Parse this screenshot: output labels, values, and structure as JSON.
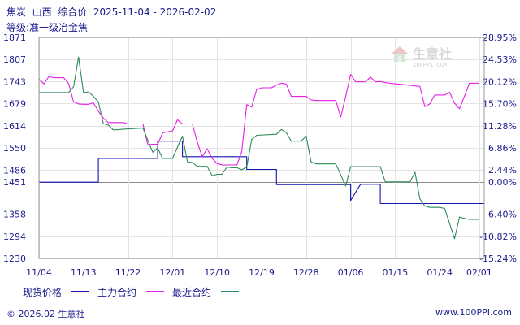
{
  "header": {
    "title": "焦炭  山西  综合价  2025-11-04 - 2026-02-02",
    "subtitle": "等级:准一级冶金焦"
  },
  "watermark": {
    "name": "生意社",
    "url": "100PPI.COM"
  },
  "footer": {
    "copyright": "© 2026.02 生意社",
    "site": "www.100PPI.com"
  },
  "legend": [
    "现货价格",
    "主力合约",
    "最近合约"
  ],
  "colors": {
    "spot": "#1414b4",
    "main": "#e61ee6",
    "near": "#2d8a5a",
    "axis": "#1a1a8c",
    "grid": "#e3e3e3",
    "zero": "#8a8a8a"
  },
  "chart_data": {
    "type": "line",
    "title": "焦炭  山西  综合价  2025-11-04 - 2026-02-02",
    "subtitle": "等级:准一级冶金焦",
    "ylim": [
      1230,
      1871
    ],
    "y2lim": [
      -15.24,
      28.95
    ],
    "yticks": [
      "1871",
      "1807",
      "1743",
      "1679",
      "1614",
      "1550",
      "1486",
      "1451",
      "1358",
      "1294",
      "1230"
    ],
    "ytick_values": [
      1871,
      1807,
      1743,
      1679,
      1614,
      1550,
      1486,
      1451,
      1358,
      1294,
      1230
    ],
    "y2ticks": [
      "28.95%",
      "24.53%",
      "20.12%",
      "15.70%",
      "11.28%",
      "6.86%",
      "2.44%",
      "0.00%",
      "-6.40%",
      "-10.82%",
      "-15.24%"
    ],
    "y2tick_values": [
      28.95,
      24.53,
      20.12,
      15.7,
      11.28,
      6.86,
      2.44,
      0.0,
      -6.4,
      -10.82,
      -15.24
    ],
    "xlim": [
      "2025-11-04",
      "2026-02-02"
    ],
    "xticks": [
      "11/04",
      "11/13",
      "11/22",
      "12/01",
      "12/10",
      "12/19",
      "12/28",
      "01/06",
      "01/15",
      "01/24",
      "02/01"
    ],
    "xtick_dates": [
      "2025-11-04",
      "2025-11-13",
      "2025-11-22",
      "2025-12-01",
      "2025-12-10",
      "2025-12-19",
      "2025-12-28",
      "2026-01-06",
      "2026-01-15",
      "2026-01-24",
      "2026-02-01"
    ],
    "grid": true,
    "legend_position": "bottom",
    "series": [
      {
        "name": "现货价格",
        "points": [
          [
            "2025-11-04",
            1451
          ],
          [
            "2025-11-16",
            1451
          ],
          [
            "2025-11-16",
            1520
          ],
          [
            "2025-11-28",
            1520
          ],
          [
            "2025-11-28",
            1570
          ],
          [
            "2025-12-03",
            1570
          ],
          [
            "2025-12-03",
            1525
          ],
          [
            "2025-12-16",
            1525
          ],
          [
            "2025-12-16",
            1488
          ],
          [
            "2025-12-22",
            1488
          ],
          [
            "2025-12-22",
            1444
          ],
          [
            "2026-01-06",
            1444
          ],
          [
            "2026-01-06",
            1398
          ],
          [
            "2026-01-08",
            1445
          ],
          [
            "2026-01-12",
            1445
          ],
          [
            "2026-01-12",
            1389
          ],
          [
            "2026-02-02",
            1389
          ]
        ]
      },
      {
        "name": "主力合约",
        "points": [
          [
            "2025-11-04",
            1750
          ],
          [
            "2025-11-05",
            1736
          ],
          [
            "2025-11-06",
            1758
          ],
          [
            "2025-11-07",
            1754
          ],
          [
            "2025-11-09",
            1754
          ],
          [
            "2025-11-10",
            1737
          ],
          [
            "2025-11-11",
            1684
          ],
          [
            "2025-11-12",
            1678
          ],
          [
            "2025-11-13",
            1677
          ],
          [
            "2025-11-14",
            1677
          ],
          [
            "2025-11-15",
            1681
          ],
          [
            "2025-11-16",
            1657
          ],
          [
            "2025-11-17",
            1637
          ],
          [
            "2025-11-18",
            1624
          ],
          [
            "2025-11-21",
            1624
          ],
          [
            "2025-11-22",
            1620
          ],
          [
            "2025-11-25",
            1620
          ],
          [
            "2025-11-26",
            1560
          ],
          [
            "2025-11-27",
            1561
          ],
          [
            "2025-11-28",
            1561
          ],
          [
            "2025-11-29",
            1594
          ],
          [
            "2025-12-01",
            1600
          ],
          [
            "2025-12-02",
            1632
          ],
          [
            "2025-12-03",
            1620
          ],
          [
            "2025-12-05",
            1620
          ],
          [
            "2025-12-06",
            1568
          ],
          [
            "2025-12-07",
            1525
          ],
          [
            "2025-12-08",
            1548
          ],
          [
            "2025-12-09",
            1520
          ],
          [
            "2025-12-10",
            1505
          ],
          [
            "2025-12-11",
            1501
          ],
          [
            "2025-12-14",
            1501
          ],
          [
            "2025-12-15",
            1540
          ],
          [
            "2025-12-16",
            1676
          ],
          [
            "2025-12-17",
            1669
          ],
          [
            "2025-12-18",
            1720
          ],
          [
            "2025-12-19",
            1725
          ],
          [
            "2025-12-21",
            1725
          ],
          [
            "2025-12-22",
            1733
          ],
          [
            "2025-12-23",
            1738
          ],
          [
            "2025-12-24",
            1736
          ],
          [
            "2025-12-25",
            1700
          ],
          [
            "2025-12-28",
            1700
          ],
          [
            "2025-12-29",
            1690
          ],
          [
            "2025-12-30",
            1688
          ],
          [
            "2026-01-03",
            1688
          ],
          [
            "2026-01-04",
            1640
          ],
          [
            "2026-01-05",
            1700
          ],
          [
            "2026-01-06",
            1764
          ],
          [
            "2026-01-07",
            1742
          ],
          [
            "2026-01-09",
            1742
          ],
          [
            "2026-01-10",
            1756
          ],
          [
            "2026-01-11",
            1742
          ],
          [
            "2026-01-12",
            1743
          ],
          [
            "2026-01-13",
            1740
          ],
          [
            "2026-01-14",
            1738
          ],
          [
            "2026-01-16",
            1735
          ],
          [
            "2026-01-20",
            1729
          ],
          [
            "2026-01-21",
            1670
          ],
          [
            "2026-01-22",
            1678
          ],
          [
            "2026-01-23",
            1704
          ],
          [
            "2026-01-25",
            1704
          ],
          [
            "2026-01-26",
            1712
          ],
          [
            "2026-01-27",
            1680
          ],
          [
            "2026-01-28",
            1664
          ],
          [
            "2026-01-29",
            1700
          ],
          [
            "2026-01-30",
            1738
          ],
          [
            "2026-02-01",
            1738
          ]
        ]
      },
      {
        "name": "最近合约",
        "points": [
          [
            "2025-11-04",
            1711
          ],
          [
            "2025-11-10",
            1711
          ],
          [
            "2025-11-11",
            1728
          ],
          [
            "2025-11-12",
            1814
          ],
          [
            "2025-11-13",
            1711
          ],
          [
            "2025-11-14",
            1713
          ],
          [
            "2025-11-15",
            1700
          ],
          [
            "2025-11-16",
            1684
          ],
          [
            "2025-11-17",
            1621
          ],
          [
            "2025-11-18",
            1617
          ],
          [
            "2025-11-19",
            1603
          ],
          [
            "2025-11-20",
            1603
          ],
          [
            "2025-11-21",
            1605
          ],
          [
            "2025-11-25",
            1608
          ],
          [
            "2025-11-27",
            1538
          ],
          [
            "2025-11-28",
            1550
          ],
          [
            "2025-11-29",
            1520
          ],
          [
            "2025-12-01",
            1520
          ],
          [
            "2025-12-03",
            1585
          ],
          [
            "2025-12-04",
            1510
          ],
          [
            "2025-12-05",
            1508
          ],
          [
            "2025-12-06",
            1497
          ],
          [
            "2025-12-08",
            1497
          ],
          [
            "2025-12-09",
            1470
          ],
          [
            "2025-12-10",
            1474
          ],
          [
            "2025-12-11",
            1474
          ],
          [
            "2025-12-12",
            1495
          ],
          [
            "2025-12-13",
            1493
          ],
          [
            "2025-12-14",
            1493
          ],
          [
            "2025-12-15",
            1487
          ],
          [
            "2025-12-16",
            1495
          ],
          [
            "2025-12-17",
            1575
          ],
          [
            "2025-12-18",
            1587
          ],
          [
            "2025-12-22",
            1590
          ],
          [
            "2025-12-23",
            1604
          ],
          [
            "2025-12-24",
            1595
          ],
          [
            "2025-12-25",
            1570
          ],
          [
            "2025-12-27",
            1570
          ],
          [
            "2025-12-28",
            1585
          ],
          [
            "2025-12-29",
            1510
          ],
          [
            "2025-12-30",
            1504
          ],
          [
            "2026-01-03",
            1504
          ],
          [
            "2026-01-05",
            1440
          ],
          [
            "2026-01-06",
            1496
          ],
          [
            "2026-01-12",
            1496
          ],
          [
            "2026-01-13",
            1452
          ],
          [
            "2026-01-18",
            1452
          ],
          [
            "2026-01-19",
            1480
          ],
          [
            "2026-01-20",
            1403
          ],
          [
            "2026-01-21",
            1382
          ],
          [
            "2026-01-22",
            1378
          ],
          [
            "2026-01-24",
            1378
          ],
          [
            "2026-01-25",
            1375
          ],
          [
            "2026-01-27",
            1287
          ],
          [
            "2026-01-28",
            1350
          ],
          [
            "2026-01-29",
            1346
          ],
          [
            "2026-01-30",
            1343
          ],
          [
            "2026-02-01",
            1343
          ]
        ]
      }
    ]
  }
}
